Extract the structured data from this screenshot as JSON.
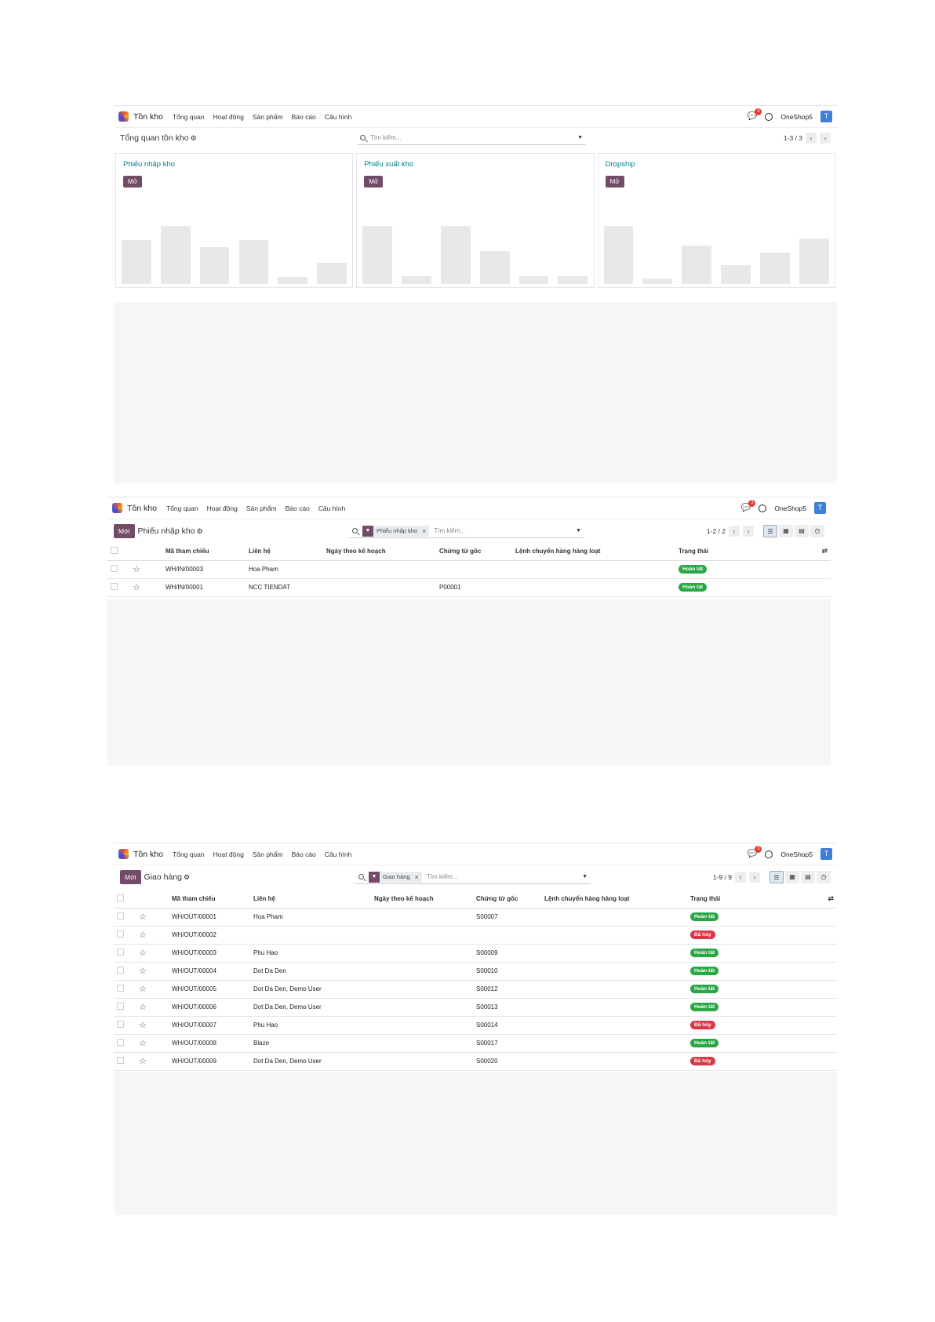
{
  "common": {
    "app_name": "Tồn kho",
    "menu": [
      "Tổng quan",
      "Hoạt động",
      "Sản phẩm",
      "Báo cáo",
      "Cấu hình"
    ],
    "chat_count": "3",
    "company": "OneShop5",
    "user_initial": "T",
    "new_label": "Mới",
    "search_placeholder": "Tìm kiếm...",
    "gear": "⚙"
  },
  "overview": {
    "breadcrumb": "Tổng quan tồn kho",
    "pager": "1-3 / 3",
    "cards": [
      {
        "title": "Phiếu nhập kho",
        "button": "Mở",
        "bars": [
          0.62,
          0.82,
          0.52,
          0.62,
          0.1,
          0.3
        ]
      },
      {
        "title": "Phiếu xuất kho",
        "button": "Mở",
        "bars": [
          0.82,
          0.11,
          0.82,
          0.47,
          0.11,
          0.11
        ]
      },
      {
        "title": "Dropship",
        "button": "Mở",
        "bars": [
          0.82,
          0.08,
          0.54,
          0.27,
          0.45,
          0.64
        ]
      }
    ]
  },
  "receipts": {
    "breadcrumb": "Phiếu nhập kho",
    "facet": "Phiếu nhập kho",
    "pager": "1-2 / 2",
    "columns": [
      "Mã tham chiếu",
      "Liên hệ",
      "Ngày theo kế hoạch",
      "Chứng từ gốc",
      "Lệnh chuyển hàng hàng loạt",
      "Trạng thái"
    ],
    "rows": [
      {
        "ref": "WH/IN/00003",
        "contact": "Hoa Pham",
        "date": "",
        "origin": "",
        "batch": "",
        "status": "Hoàn tất",
        "state": "ok"
      },
      {
        "ref": "WH/IN/00001",
        "contact": "NCC TIENDAT",
        "date": "",
        "origin": "P00001",
        "batch": "",
        "status": "Hoàn tất",
        "state": "ok"
      }
    ]
  },
  "deliveries": {
    "breadcrumb": "Giao hàng",
    "facet": "Giao hàng",
    "pager": "1-9 / 9",
    "columns": [
      "Mã tham chiếu",
      "Liên hệ",
      "Ngày theo kế hoạch",
      "Chứng từ gốc",
      "Lệnh chuyển hàng hàng loạt",
      "Trạng thái"
    ],
    "rows": [
      {
        "ref": "WH/OUT/00001",
        "contact": "Hoa Pham",
        "date": "",
        "origin": "S00007",
        "batch": "",
        "status": "Hoàn tất",
        "state": "ok"
      },
      {
        "ref": "WH/OUT/00002",
        "contact": "",
        "date": "",
        "origin": "",
        "batch": "",
        "status": "Đã hủy",
        "state": "no"
      },
      {
        "ref": "WH/OUT/00003",
        "contact": "Phu Hao",
        "date": "",
        "origin": "S00009",
        "batch": "",
        "status": "Hoàn tất",
        "state": "ok"
      },
      {
        "ref": "WH/OUT/00004",
        "contact": "Dot Da Den",
        "date": "",
        "origin": "S00010",
        "batch": "",
        "status": "Hoàn tất",
        "state": "ok"
      },
      {
        "ref": "WH/OUT/00005",
        "contact": "Dot Da Den, Demo User",
        "date": "",
        "origin": "S00012",
        "batch": "",
        "status": "Hoàn tất",
        "state": "ok"
      },
      {
        "ref": "WH/OUT/00006",
        "contact": "Dot Da Den, Demo User",
        "date": "",
        "origin": "S00013",
        "batch": "",
        "status": "Hoàn tất",
        "state": "ok"
      },
      {
        "ref": "WH/OUT/00007",
        "contact": "Phu Hao",
        "date": "",
        "origin": "S00014",
        "batch": "",
        "status": "Đã hủy",
        "state": "no"
      },
      {
        "ref": "WH/OUT/00008",
        "contact": "Blaze",
        "date": "",
        "origin": "S00017",
        "batch": "",
        "status": "Hoàn tất",
        "state": "ok"
      },
      {
        "ref": "WH/OUT/00009",
        "contact": "Dot Da Den, Demo User",
        "date": "",
        "origin": "S00020",
        "batch": "",
        "status": "Đã hủy",
        "state": "no"
      }
    ]
  }
}
